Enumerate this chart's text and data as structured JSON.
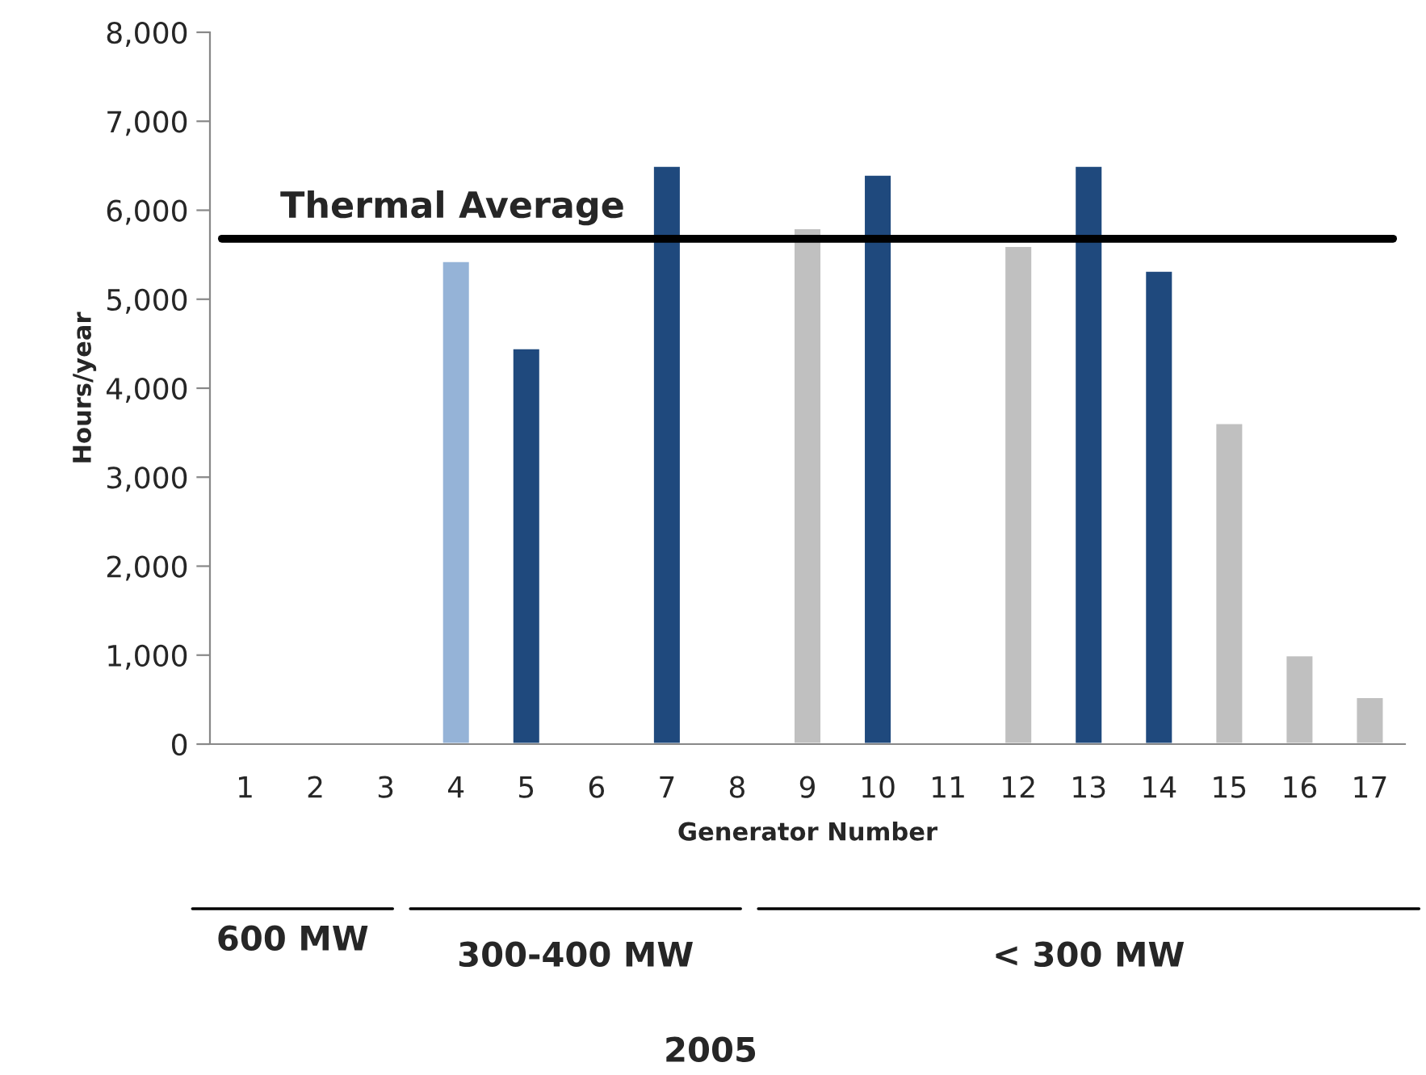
{
  "chart_data": {
    "type": "bar",
    "xlabel": "Generator Number",
    "ylabel": "Hours/year",
    "categories": [
      "1",
      "2",
      "3",
      "4",
      "5",
      "6",
      "7",
      "8",
      "9",
      "10",
      "11",
      "12",
      "13",
      "14",
      "15",
      "16",
      "17"
    ],
    "values": [
      null,
      null,
      null,
      5430,
      4450,
      null,
      6500,
      null,
      5800,
      6400,
      null,
      5600,
      6500,
      5320,
      3610,
      1000,
      530
    ],
    "colors": [
      "#95b3d7",
      "#95b3d7",
      "#95b3d7",
      "#95b3d7",
      "#1f497d",
      "#1f497d",
      "#1f497d",
      "#1f497d",
      "#c0c0c0",
      "#1f497d",
      "#c0c0c0",
      "#c0c0c0",
      "#1f497d",
      "#1f497d",
      "#c0c0c0",
      "#c0c0c0",
      "#c0c0c0"
    ],
    "ylim": [
      0,
      8000
    ],
    "yticks": [
      {
        "value": 0,
        "label": "0"
      },
      {
        "value": 1000,
        "label": "1,000"
      },
      {
        "value": 2000,
        "label": "2,000"
      },
      {
        "value": 3000,
        "label": "3,000"
      },
      {
        "value": 4000,
        "label": "4,000"
      },
      {
        "value": 5000,
        "label": "5,000"
      },
      {
        "value": 6000,
        "label": "6,000"
      },
      {
        "value": 7000,
        "label": "7,000"
      },
      {
        "value": 8000,
        "label": "8,000"
      }
    ],
    "ref_lines": [
      {
        "axis": "y",
        "value": 5680,
        "label": "Thermal Average",
        "color": "#000000"
      }
    ],
    "annotations": [
      "600 MW",
      "300-400 MW",
      "< 300 MW",
      "2005"
    ],
    "grid": false
  }
}
